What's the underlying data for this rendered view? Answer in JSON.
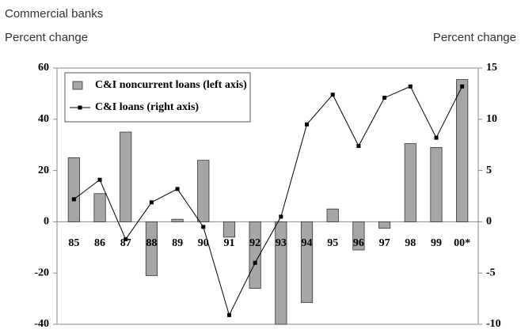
{
  "chart_data": {
    "type": "bar_line",
    "title": "Commercial banks",
    "y_label": "Percent change",
    "y2_label": "Percent change",
    "categories": [
      "85",
      "86",
      "87",
      "88",
      "89",
      "90",
      "91",
      "92",
      "93",
      "94",
      "95",
      "96",
      "97",
      "98",
      "99",
      "00*"
    ],
    "series": [
      {
        "name": "C&I noncurrent loans (left axis)",
        "color": "#a6a6a6",
        "type": "bar",
        "values": [
          25,
          11,
          35,
          -21,
          1,
          24,
          -6,
          -26,
          -40,
          -31.5,
          5,
          -11,
          -2.5,
          30.5,
          29,
          55.5
        ]
      },
      {
        "name": "C&I loans (right axis)",
        "color": "#000000",
        "type": "line",
        "axis": "y2",
        "values": [
          2.2,
          4.1,
          -1.7,
          1.9,
          3.2,
          -0.5,
          -9.1,
          -4.0,
          0.5,
          9.5,
          12.4,
          7.4,
          12.1,
          13.2,
          8.2,
          13.2
        ]
      }
    ],
    "ylim": [
      -40,
      60
    ],
    "yticks": [
      60,
      40,
      20,
      0,
      -20,
      -40
    ],
    "y2lim": [
      -10,
      15
    ],
    "y2ticks": [
      15,
      10,
      5,
      0,
      -5,
      -10
    ],
    "legend": "upper left"
  }
}
